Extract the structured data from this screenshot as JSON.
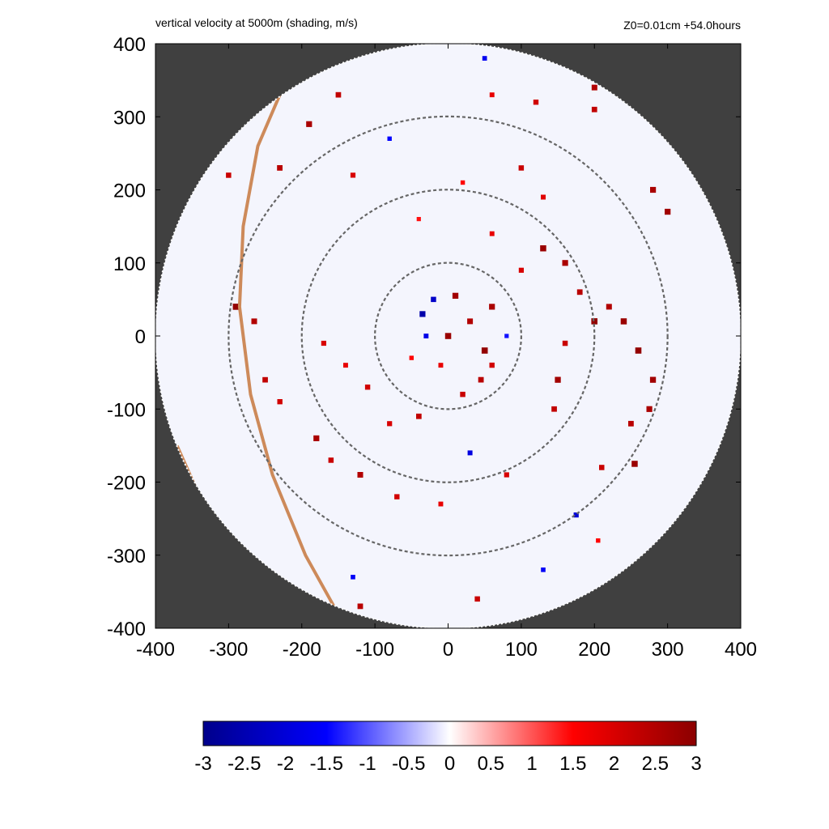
{
  "header": {
    "title": "vertical velocity at 5000m (shading, m/s)",
    "info": "Z0=0.01cm  +54.0hours"
  },
  "chart_data": {
    "type": "heatmap",
    "title": "vertical velocity at 5000m (shading, m/s)",
    "annotation": "Z0=0.01cm  +54.0hours",
    "xlim": [
      -400,
      400
    ],
    "ylim": [
      -400,
      400
    ],
    "x_ticks": [
      "-400",
      "-300",
      "-200",
      "-100",
      "0",
      "100",
      "200",
      "300",
      "400"
    ],
    "y_ticks": [
      "400",
      "300",
      "200",
      "100",
      "0",
      "-100",
      "-200",
      "-300",
      "-400"
    ],
    "x_tick_values": [
      -400,
      -300,
      -200,
      -100,
      0,
      100,
      200,
      300,
      400
    ],
    "y_tick_values": [
      400,
      300,
      200,
      100,
      0,
      -100,
      -200,
      -300,
      -400
    ],
    "domain_radius": 400,
    "range_rings": [
      100,
      200,
      300
    ],
    "background_color": "#404040",
    "colorbar": {
      "min": -3,
      "max": 3,
      "ticks": [
        "-3",
        "-2.5",
        "-2",
        "-1.5",
        "-1",
        "-0.5",
        "0",
        "0.5",
        "1",
        "1.5",
        "2",
        "2.5",
        "3"
      ],
      "tick_values": [
        -3,
        -2.5,
        -2,
        -1.5,
        -1,
        -0.5,
        0,
        0.5,
        1,
        1.5,
        2,
        2.5,
        3
      ],
      "colors": [
        "#00008b",
        "#0000ff",
        "#ffffff",
        "#ff0000",
        "#8b0000"
      ]
    },
    "coastline_color": "#cd8a5a",
    "coastline_main": [
      [
        -230,
        330
      ],
      [
        -260,
        260
      ],
      [
        -280,
        150
      ],
      [
        -285,
        40
      ],
      [
        -270,
        -80
      ],
      [
        -240,
        -190
      ],
      [
        -195,
        -300
      ],
      [
        -145,
        -390
      ]
    ],
    "coastline_lower": [
      [
        -370,
        -150
      ],
      [
        -330,
        -240
      ],
      [
        -290,
        -300
      ],
      [
        -255,
        -345
      ]
    ],
    "features": [
      {
        "x": 0,
        "y": 0,
        "v": 2.8
      },
      {
        "x": 30,
        "y": 20,
        "v": 2.5
      },
      {
        "x": 50,
        "y": -20,
        "v": 2.9
      },
      {
        "x": 45,
        "y": -60,
        "v": 2.4
      },
      {
        "x": 20,
        "y": -80,
        "v": 2.2
      },
      {
        "x": -20,
        "y": 50,
        "v": -2.2
      },
      {
        "x": -35,
        "y": 30,
        "v": -2.6
      },
      {
        "x": -30,
        "y": 0,
        "v": -1.8
      },
      {
        "x": 60,
        "y": 40,
        "v": 2.6
      },
      {
        "x": 10,
        "y": 55,
        "v": 2.7
      },
      {
        "x": -10,
        "y": -40,
        "v": 1.8
      },
      {
        "x": -50,
        "y": -30,
        "v": 1.5
      },
      {
        "x": 80,
        "y": 0,
        "v": -1.4
      },
      {
        "x": 60,
        "y": -40,
        "v": 2.1
      },
      {
        "x": 130,
        "y": 120,
        "v": 2.8
      },
      {
        "x": 160,
        "y": 100,
        "v": 2.6
      },
      {
        "x": 180,
        "y": 60,
        "v": 2.4
      },
      {
        "x": 200,
        "y": 20,
        "v": 2.9
      },
      {
        "x": 160,
        "y": -10,
        "v": 2.2
      },
      {
        "x": 150,
        "y": -60,
        "v": 2.7
      },
      {
        "x": 145,
        "y": -100,
        "v": 2.3
      },
      {
        "x": 100,
        "y": 90,
        "v": 2.0
      },
      {
        "x": 60,
        "y": 140,
        "v": 1.8
      },
      {
        "x": 220,
        "y": 40,
        "v": 2.5
      },
      {
        "x": 240,
        "y": 20,
        "v": 2.8
      },
      {
        "x": 260,
        "y": -20,
        "v": 2.9
      },
      {
        "x": 280,
        "y": -60,
        "v": 2.7
      },
      {
        "x": 275,
        "y": -100,
        "v": 2.6
      },
      {
        "x": 250,
        "y": -120,
        "v": 2.4
      },
      {
        "x": 210,
        "y": -180,
        "v": 2.2
      },
      {
        "x": 255,
        "y": -175,
        "v": 2.8
      },
      {
        "x": 175,
        "y": -245,
        "v": -2.0
      },
      {
        "x": 130,
        "y": -320,
        "v": -1.6
      },
      {
        "x": 205,
        "y": -280,
        "v": 1.5
      },
      {
        "x": 280,
        "y": 200,
        "v": 2.6
      },
      {
        "x": 300,
        "y": 170,
        "v": 2.7
      },
      {
        "x": 200,
        "y": 310,
        "v": 2.3
      },
      {
        "x": 120,
        "y": 320,
        "v": 2.1
      },
      {
        "x": 60,
        "y": 330,
        "v": 1.8
      },
      {
        "x": 50,
        "y": 380,
        "v": -1.7
      },
      {
        "x": 100,
        "y": 230,
        "v": 2.2
      },
      {
        "x": 130,
        "y": 190,
        "v": 1.9
      },
      {
        "x": 20,
        "y": 210,
        "v": 1.5
      },
      {
        "x": -40,
        "y": 160,
        "v": 1.4
      },
      {
        "x": -140,
        "y": -40,
        "v": 1.8
      },
      {
        "x": -170,
        "y": -10,
        "v": 2.0
      },
      {
        "x": -110,
        "y": -70,
        "v": 2.1
      },
      {
        "x": -80,
        "y": -120,
        "v": 2.0
      },
      {
        "x": -40,
        "y": -110,
        "v": 2.3
      },
      {
        "x": -180,
        "y": -140,
        "v": 2.6
      },
      {
        "x": -160,
        "y": -170,
        "v": 2.2
      },
      {
        "x": -120,
        "y": -190,
        "v": 2.5
      },
      {
        "x": -70,
        "y": -220,
        "v": 2.1
      },
      {
        "x": -10,
        "y": -230,
        "v": 1.8
      },
      {
        "x": 30,
        "y": -160,
        "v": -1.9
      },
      {
        "x": 80,
        "y": -190,
        "v": 2.0
      },
      {
        "x": -230,
        "y": 230,
        "v": 2.4
      },
      {
        "x": -190,
        "y": 290,
        "v": 2.6
      },
      {
        "x": -150,
        "y": 330,
        "v": 2.3
      },
      {
        "x": -300,
        "y": 220,
        "v": 2.2
      },
      {
        "x": -290,
        "y": 40,
        "v": 2.9
      },
      {
        "x": -265,
        "y": 20,
        "v": 2.5
      },
      {
        "x": -250,
        "y": -60,
        "v": 2.3
      },
      {
        "x": -230,
        "y": -90,
        "v": 2.1
      },
      {
        "x": -130,
        "y": 220,
        "v": 2.0
      },
      {
        "x": -80,
        "y": 270,
        "v": -1.5
      },
      {
        "x": 200,
        "y": 340,
        "v": 2.5
      },
      {
        "x": 40,
        "y": -360,
        "v": 2.2
      },
      {
        "x": -120,
        "y": -370,
        "v": 2.4
      },
      {
        "x": -130,
        "y": -330,
        "v": -1.6
      }
    ]
  }
}
